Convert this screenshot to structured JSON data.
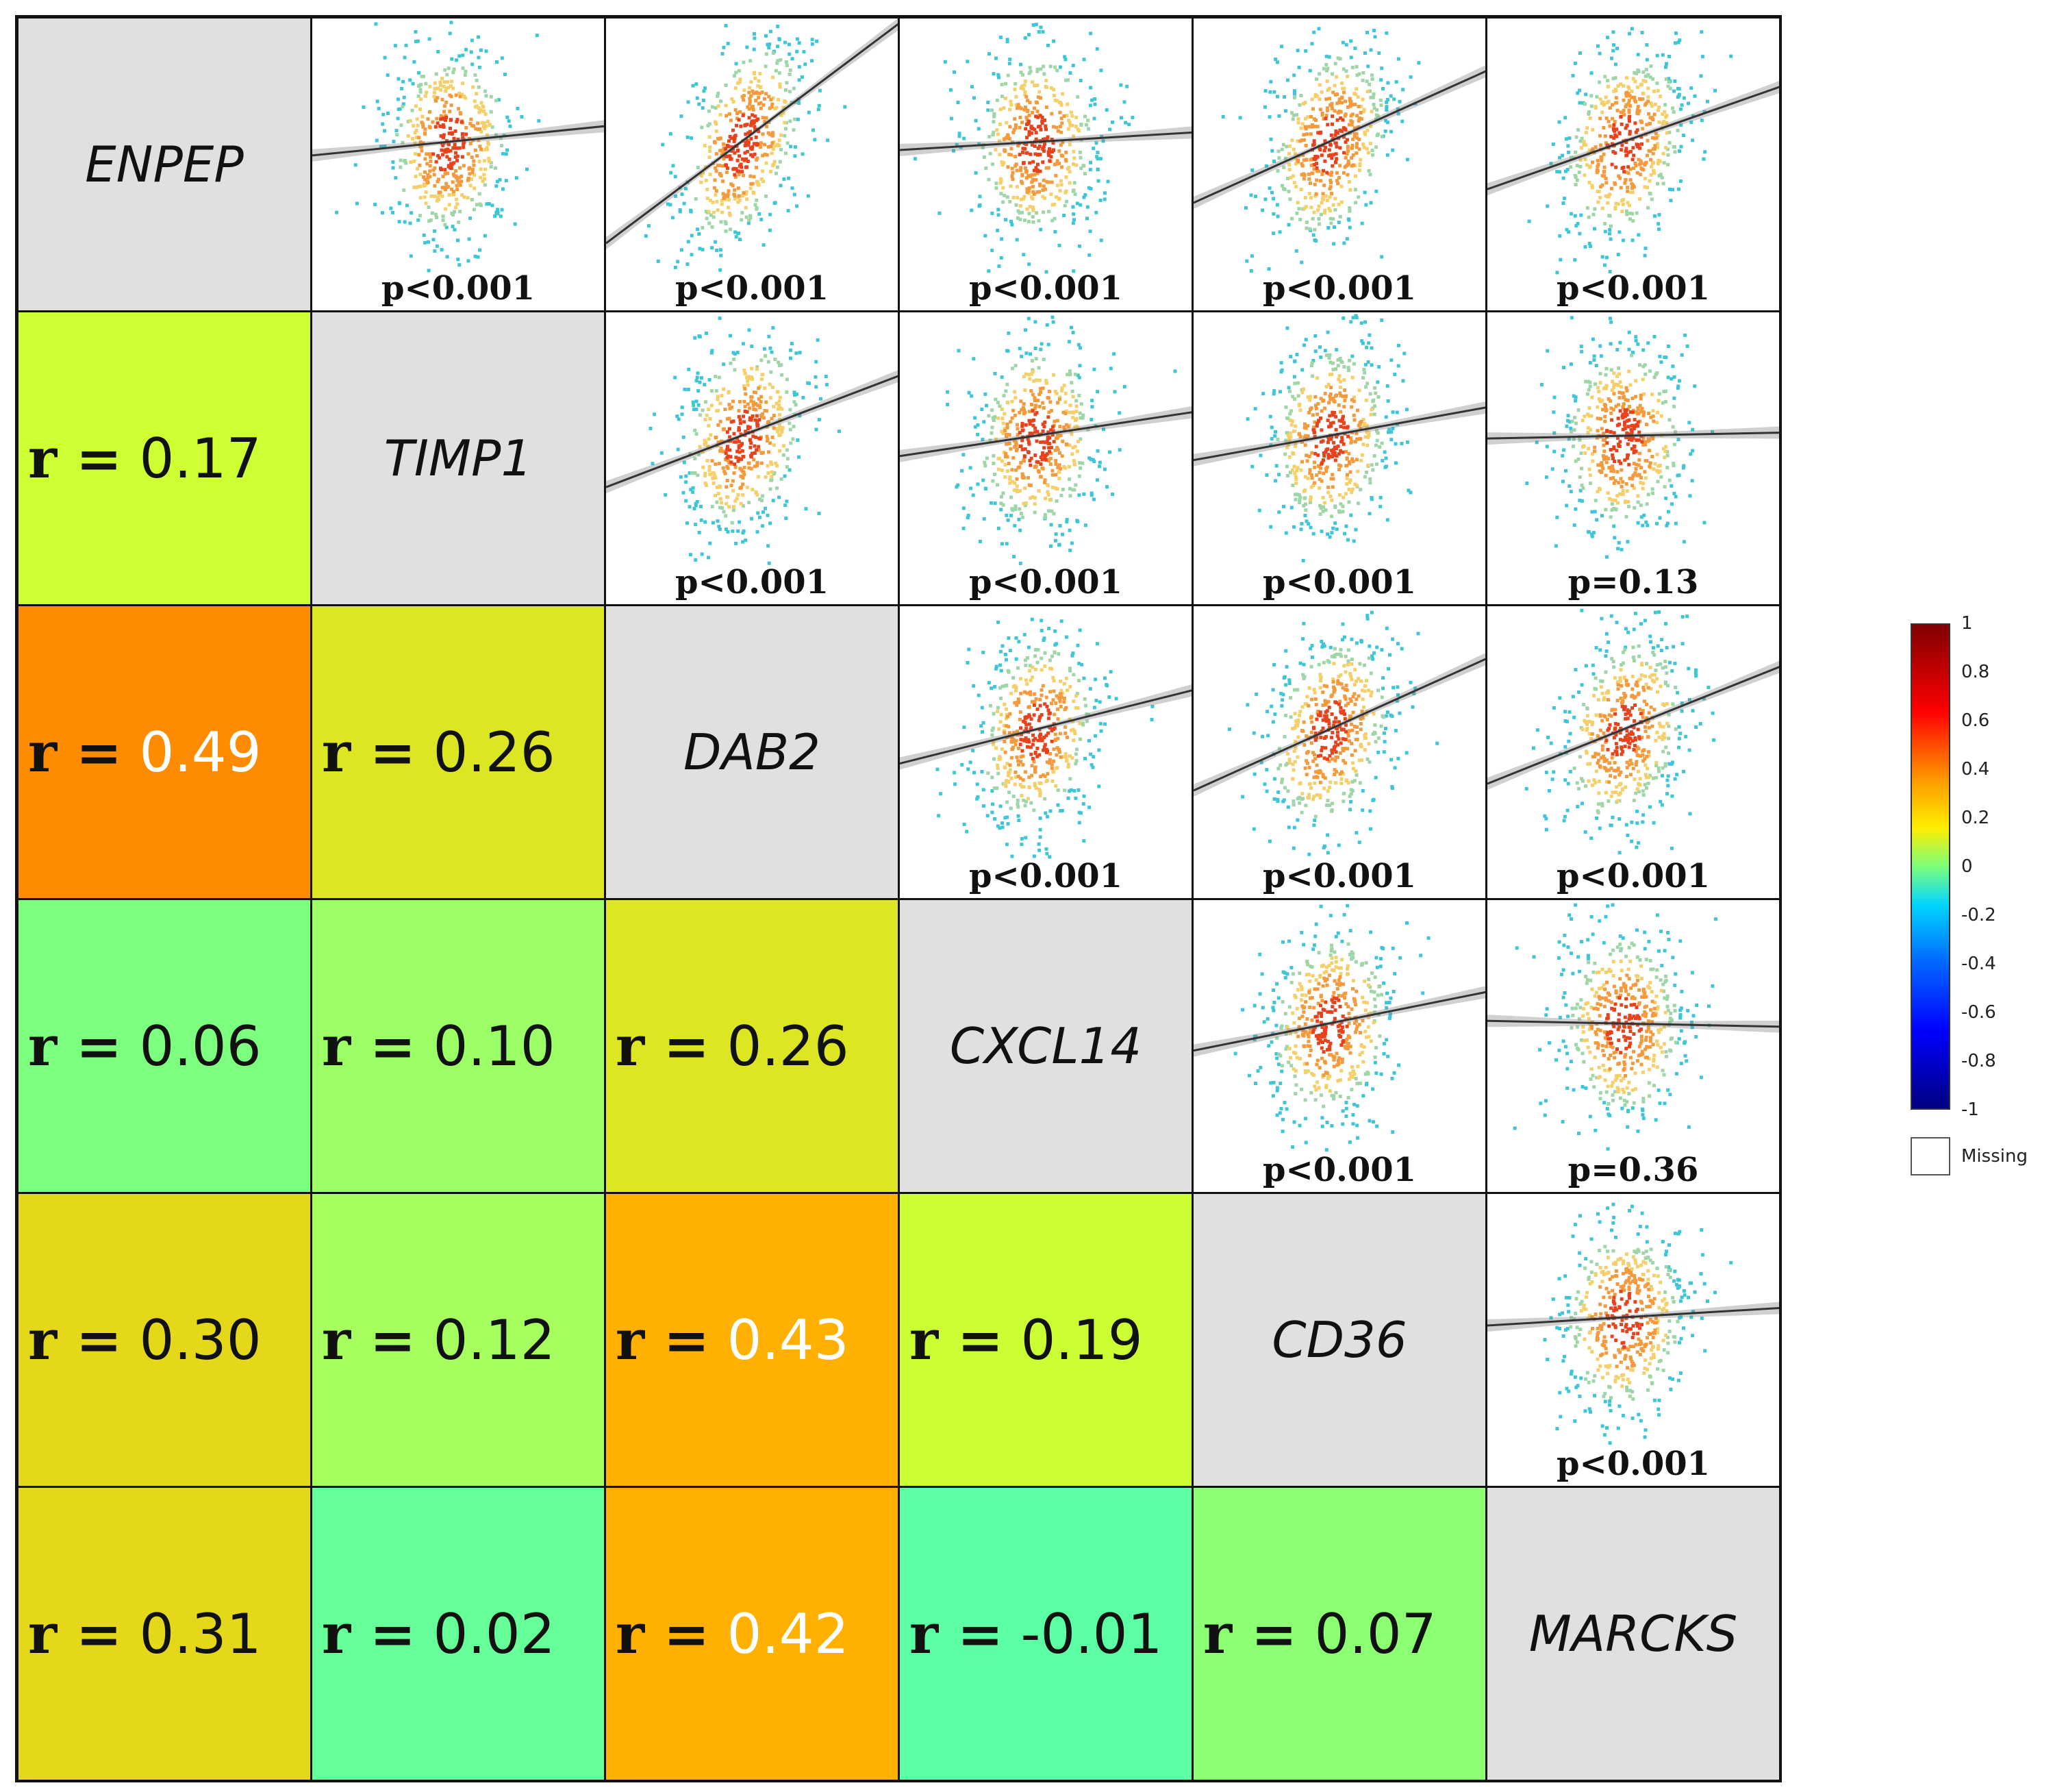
{
  "chart_data": {
    "type": "heatmap",
    "title": "",
    "genes": [
      "ENPEP",
      "TIMP1",
      "DAB2",
      "CXCL14",
      "CD36",
      "MARCKS"
    ],
    "lower_triangle": [
      {
        "row": 1,
        "col": 0,
        "r": 0.17,
        "label": "r =",
        "value": "0.17",
        "color": "#cdff33",
        "text_color": "#111111"
      },
      {
        "row": 2,
        "col": 0,
        "r": 0.49,
        "label": "r =",
        "value": "0.49",
        "color": "#ff8c00",
        "text_color": "#ffffff"
      },
      {
        "row": 2,
        "col": 1,
        "r": 0.26,
        "label": "r =",
        "value": "0.26",
        "color": "#dde622",
        "text_color": "#111111"
      },
      {
        "row": 3,
        "col": 0,
        "r": 0.06,
        "label": "r =",
        "value": "0.06",
        "color": "#7dff80",
        "text_color": "#111111"
      },
      {
        "row": 3,
        "col": 1,
        "r": 0.1,
        "label": "r =",
        "value": "0.10",
        "color": "#9cff66",
        "text_color": "#111111"
      },
      {
        "row": 3,
        "col": 2,
        "r": 0.26,
        "label": "r =",
        "value": "0.26",
        "color": "#dde622",
        "text_color": "#111111"
      },
      {
        "row": 4,
        "col": 0,
        "r": 0.3,
        "label": "r =",
        "value": "0.30",
        "color": "#e5d81a",
        "text_color": "#111111"
      },
      {
        "row": 4,
        "col": 1,
        "r": 0.12,
        "label": "r =",
        "value": "0.12",
        "color": "#a6ff5e",
        "text_color": "#111111"
      },
      {
        "row": 4,
        "col": 2,
        "r": 0.43,
        "label": "r =",
        "value": "0.43",
        "color": "#ffb000",
        "text_color": "#ffffff"
      },
      {
        "row": 4,
        "col": 3,
        "r": 0.19,
        "label": "r =",
        "value": "0.19",
        "color": "#ccff33",
        "text_color": "#111111"
      },
      {
        "row": 5,
        "col": 0,
        "r": 0.31,
        "label": "r =",
        "value": "0.31",
        "color": "#e5d81a",
        "text_color": "#111111"
      },
      {
        "row": 5,
        "col": 1,
        "r": 0.02,
        "label": "r =",
        "value": "0.02",
        "color": "#66ff99",
        "text_color": "#111111"
      },
      {
        "row": 5,
        "col": 2,
        "r": 0.42,
        "label": "r =",
        "value": "0.42",
        "color": "#ffb000",
        "text_color": "#ffffff"
      },
      {
        "row": 5,
        "col": 3,
        "r": -0.01,
        "label": "r =",
        "value": "-0.01",
        "color": "#5cffa3",
        "text_color": "#111111"
      },
      {
        "row": 5,
        "col": 4,
        "r": 0.07,
        "label": "r =",
        "value": "0.07",
        "color": "#8cff73",
        "text_color": "#111111"
      }
    ],
    "upper_triangle": [
      {
        "row": 0,
        "col": 1,
        "p": "p<0.001",
        "slope": 0.1
      },
      {
        "row": 0,
        "col": 2,
        "p": "p<0.001",
        "slope": 0.75
      },
      {
        "row": 0,
        "col": 3,
        "p": "p<0.001",
        "slope": 0.06
      },
      {
        "row": 0,
        "col": 4,
        "p": "p<0.001",
        "slope": 0.45
      },
      {
        "row": 0,
        "col": 5,
        "p": "p<0.001",
        "slope": 0.35
      },
      {
        "row": 1,
        "col": 2,
        "p": "p<0.001",
        "slope": 0.38
      },
      {
        "row": 1,
        "col": 3,
        "p": "p<0.001",
        "slope": 0.15
      },
      {
        "row": 1,
        "col": 4,
        "p": "p<0.001",
        "slope": 0.18
      },
      {
        "row": 1,
        "col": 5,
        "p": "p=0.13",
        "slope": 0.02
      },
      {
        "row": 2,
        "col": 3,
        "p": "p<0.001",
        "slope": 0.25
      },
      {
        "row": 2,
        "col": 4,
        "p": "p<0.001",
        "slope": 0.45
      },
      {
        "row": 2,
        "col": 5,
        "p": "p<0.001",
        "slope": 0.4
      },
      {
        "row": 3,
        "col": 4,
        "p": "p<0.001",
        "slope": 0.2
      },
      {
        "row": 3,
        "col": 5,
        "p": "p=0.36",
        "slope": -0.02
      },
      {
        "row": 4,
        "col": 5,
        "p": "p<0.001",
        "slope": 0.06
      }
    ],
    "colorbar": {
      "ticks": [
        "1",
        "0.8",
        "0.6",
        "0.4",
        "0.2",
        "0",
        "-0.2",
        "-0.4",
        "-0.6",
        "-0.8",
        "-1"
      ],
      "range": [
        -1,
        1
      ],
      "missing_label": "Missing"
    }
  },
  "colors": {
    "diagonal": "#e0e0e0",
    "scatter_low": "#3ec6d6",
    "scatter_mid": "#f5cf6a",
    "scatter_high": "#e8421c",
    "regression_line": "#333333"
  }
}
